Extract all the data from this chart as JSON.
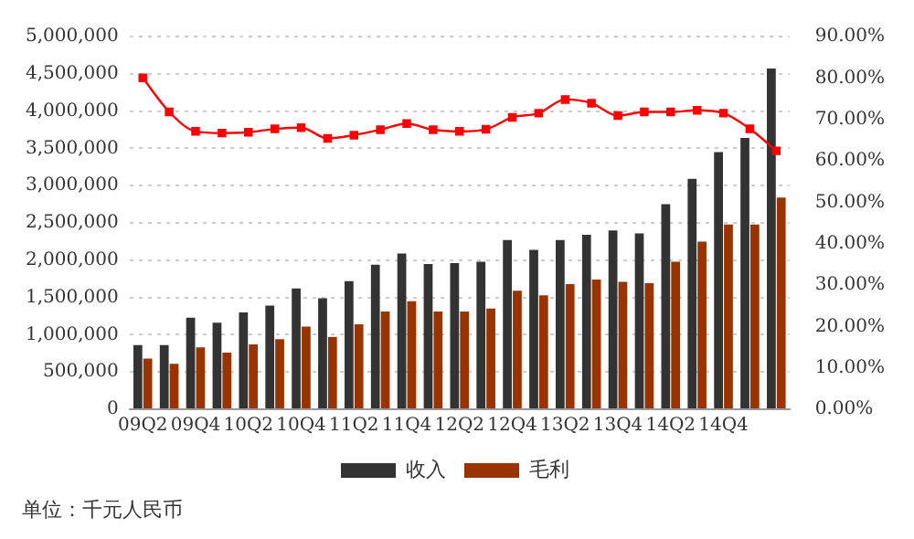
{
  "chart_data": {
    "type": "bar",
    "categories": [
      "09Q2",
      null,
      "09Q4",
      null,
      "10Q2",
      null,
      "10Q4",
      null,
      "11Q2",
      null,
      "11Q4",
      null,
      "12Q2",
      null,
      "12Q4",
      null,
      "13Q2",
      null,
      "13Q4",
      null,
      "14Q2",
      null,
      "14Q4",
      null,
      null
    ],
    "series": [
      {
        "name": "收入",
        "color": "#333333",
        "values": [
          860000,
          860000,
          1230000,
          1160000,
          1300000,
          1390000,
          1620000,
          1490000,
          1720000,
          1940000,
          2090000,
          1950000,
          1960000,
          1980000,
          2270000,
          2140000,
          2270000,
          2340000,
          2400000,
          2360000,
          2750000,
          3090000,
          3450000,
          3640000,
          4570000
        ]
      },
      {
        "name": "毛利",
        "color": "#993300",
        "values": [
          680000,
          610000,
          830000,
          760000,
          870000,
          940000,
          1110000,
          970000,
          1140000,
          1310000,
          1450000,
          1310000,
          1310000,
          1350000,
          1590000,
          1530000,
          1680000,
          1740000,
          1710000,
          1690000,
          1980000,
          2250000,
          2480000,
          2480000,
          2840000
        ]
      },
      {
        "type": "line",
        "axis": "y2",
        "color": "#ff0000",
        "marker": "square",
        "values": [
          80.0,
          71.8,
          67.1,
          66.7,
          66.9,
          67.7,
          68.0,
          65.4,
          66.2,
          67.5,
          69.0,
          67.5,
          67.1,
          67.6,
          70.5,
          71.5,
          74.8,
          73.9,
          70.9,
          71.8,
          71.8,
          72.2,
          71.5,
          67.7,
          62.4
        ]
      }
    ],
    "ylim": [
      0,
      5000000
    ],
    "yticks": [
      0,
      {
        "value": 500000,
        "label": "500,000"
      },
      {
        "value": 1000000,
        "label": "1,000,000"
      },
      {
        "value": 1500000,
        "label": "1,500,000"
      },
      {
        "value": 2000000,
        "label": "2,000,000"
      },
      {
        "value": 2500000,
        "label": "2,500,000"
      },
      {
        "value": 3000000,
        "label": "3,000,000"
      },
      {
        "value": 3500000,
        "label": "3,500,000"
      },
      {
        "value": 4000000,
        "label": "4,000,000"
      },
      {
        "value": 4500000,
        "label": "4,500,000"
      },
      {
        "value": 5000000,
        "label": "5,000,000"
      }
    ],
    "y2lim": [
      0,
      90
    ],
    "y2ticks": [
      {
        "value": 0,
        "label": "0.00%"
      },
      {
        "value": 10,
        "label": "10.00%"
      },
      {
        "value": 20,
        "label": "20.00%"
      },
      {
        "value": 30,
        "label": "30.00%"
      },
      {
        "value": 40,
        "label": "40.00%"
      },
      {
        "value": 50,
        "label": "50.00%"
      },
      {
        "value": 60,
        "label": "60.00%"
      },
      {
        "value": 70,
        "label": "70.00%"
      },
      {
        "value": 80,
        "label": "80.00%"
      },
      {
        "value": 90,
        "label": "90.00%"
      }
    ],
    "grid": "y",
    "legend": "bottom",
    "annotations": [
      "单位：千元人民币"
    ]
  }
}
